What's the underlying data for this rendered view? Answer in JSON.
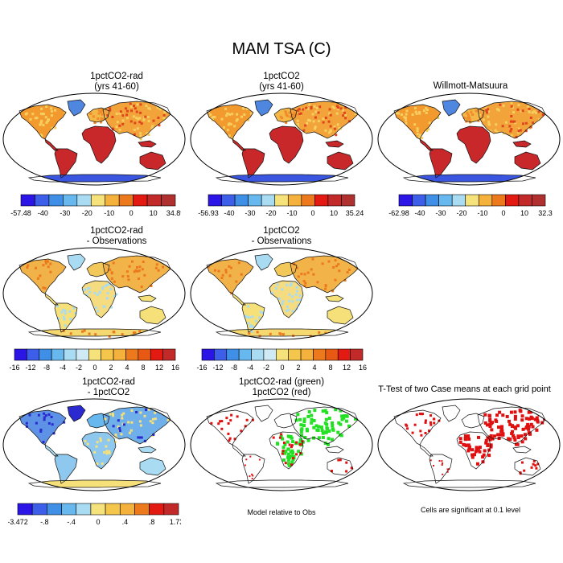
{
  "title": "MAM TSA (C)",
  "panels": [
    {
      "id": "p1",
      "title": [
        "1pctCO2-rad",
        "(yrs 41-60)"
      ],
      "style": "abs"
    },
    {
      "id": "p2",
      "title": [
        "1pctCO2",
        "(yrs 41-60)"
      ],
      "style": "abs"
    },
    {
      "id": "p3",
      "title": [
        "Willmott-Matsuura",
        ""
      ],
      "style": "abs"
    },
    {
      "id": "p4",
      "title": [
        "1pctCO2-rad",
        "- Observations"
      ],
      "style": "diff"
    },
    {
      "id": "p5",
      "title": [
        "1pctCO2",
        "- Observations"
      ],
      "style": "diff"
    },
    {
      "id": "p6",
      "title": [
        "1pctCO2-rad",
        "- 1pctCO2"
      ],
      "style": "cdiff"
    },
    {
      "id": "p7",
      "title": [
        "1pctCO2-rad (green)",
        "1pctCO2 (red)"
      ],
      "style": "mask2"
    },
    {
      "id": "p8",
      "title": [
        "T-Test of two Case means at each grid point",
        ""
      ],
      "style": "ttest"
    }
  ],
  "colorbars": [
    {
      "id": "cb1",
      "colors": [
        "#2a14e6",
        "#3c5ee8",
        "#3f8fe6",
        "#66b8ef",
        "#a9dcf2",
        "#f5e27a",
        "#f4b23d",
        "#ec7a1d",
        "#e21a12",
        "#c22a2a",
        "#b03030"
      ],
      "labels": [
        "-57.48",
        "-40",
        "-30",
        "-20",
        "-10",
        "0",
        "10",
        "34.89"
      ]
    },
    {
      "id": "cb2",
      "colors": [
        "#2a14e6",
        "#3c5ee8",
        "#3f8fe6",
        "#66b8ef",
        "#a9dcf2",
        "#f5e27a",
        "#f4b23d",
        "#ec7a1d",
        "#e21a12",
        "#c22a2a",
        "#b03030"
      ],
      "labels": [
        "-56.93",
        "-40",
        "-30",
        "-20",
        "-10",
        "0",
        "10",
        "35.24"
      ]
    },
    {
      "id": "cb3",
      "colors": [
        "#2a14e6",
        "#3c5ee8",
        "#3f8fe6",
        "#66b8ef",
        "#a9dcf2",
        "#f5e27a",
        "#f4b23d",
        "#ec7a1d",
        "#e21a12",
        "#c22a2a",
        "#b03030"
      ],
      "labels": [
        "-62.98",
        "-40",
        "-30",
        "-20",
        "-10",
        "0",
        "10",
        "32.3"
      ]
    },
    {
      "id": "cb4",
      "colors": [
        "#2a14e6",
        "#3c5ee8",
        "#3f8fe6",
        "#66b8ef",
        "#a9dcf2",
        "#cfeaf4",
        "#f5e27a",
        "#f4c64b",
        "#f4b23d",
        "#ec7a1d",
        "#e85a14",
        "#e21a12",
        "#c22a2a"
      ],
      "labels": [
        "-16",
        "-12",
        "-8",
        "-4",
        "-2",
        "0",
        "2",
        "4",
        "8",
        "12",
        "16"
      ]
    },
    {
      "id": "cb5",
      "colors": [
        "#2a14e6",
        "#3c5ee8",
        "#3f8fe6",
        "#66b8ef",
        "#a9dcf2",
        "#cfeaf4",
        "#f5e27a",
        "#f4c64b",
        "#f4b23d",
        "#ec7a1d",
        "#e85a14",
        "#e21a12",
        "#c22a2a"
      ],
      "labels": [
        "-16",
        "-12",
        "-8",
        "-4",
        "-2",
        "0",
        "2",
        "4",
        "8",
        "12",
        "16"
      ]
    },
    {
      "id": "cb6",
      "colors": [
        "#2a14e6",
        "#3c5ee8",
        "#3f8fe6",
        "#66b8ef",
        "#a9dcf2",
        "#f5e27a",
        "#f4c64b",
        "#f4b23d",
        "#ec7a1d",
        "#e21a12",
        "#c22a2a"
      ],
      "labels": [
        "-3.472",
        "-.8",
        "-.4",
        "0",
        ".4",
        ".8",
        "1.735"
      ]
    }
  ],
  "captions": {
    "model_relative": "Model relative to Obs",
    "significance": "Cells are significant at 0.1 level"
  }
}
